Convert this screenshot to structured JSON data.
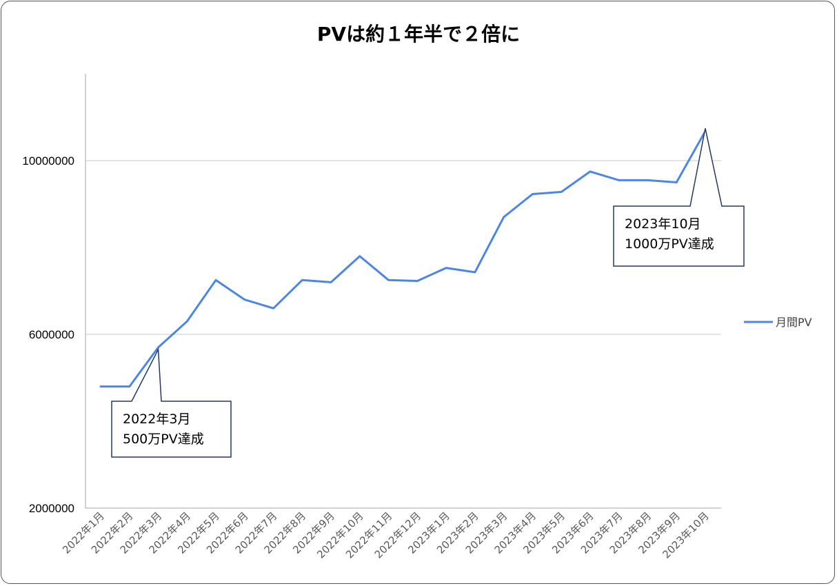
{
  "chart_data": {
    "type": "line",
    "title": "PVは約１年半で２倍に",
    "xlabel": "",
    "ylabel": "",
    "categories": [
      "2022年1月",
      "2022年2月",
      "2022年3月",
      "2022年4月",
      "2022年5月",
      "2022年6月",
      "2022年7月",
      "2022年8月",
      "2022年9月",
      "2022年10月",
      "2022年11月",
      "2022年12月",
      "2023年1月",
      "2023年2月",
      "2023年3月",
      "2023年4月",
      "2023年5月",
      "2023年6月",
      "2023年7月",
      "2023年8月",
      "2023年9月",
      "2023年10月"
    ],
    "series": [
      {
        "name": "月間PV",
        "color": "#4a86e8",
        "values": [
          4800000,
          4800000,
          5700000,
          6300000,
          7250000,
          6800000,
          6600000,
          7250000,
          7200000,
          7800000,
          7250000,
          7230000,
          7530000,
          7430000,
          8700000,
          9230000,
          9280000,
          9750000,
          9550000,
          9550000,
          9500000,
          10680000
        ]
      }
    ],
    "ylim": [
      2000000,
      12000000
    ],
    "yticks": [
      2000000,
      6000000,
      10000000
    ],
    "ytick_labels": [
      "2000000",
      "6000000",
      "10000000"
    ],
    "grid": true,
    "legend_position": "right",
    "annotations": [
      {
        "category_index": 2,
        "lines": [
          "2022年3月",
          "500万PV達成"
        ]
      },
      {
        "category_index": 21,
        "lines": [
          "2023年10月",
          "1000万PV達成"
        ]
      }
    ]
  }
}
